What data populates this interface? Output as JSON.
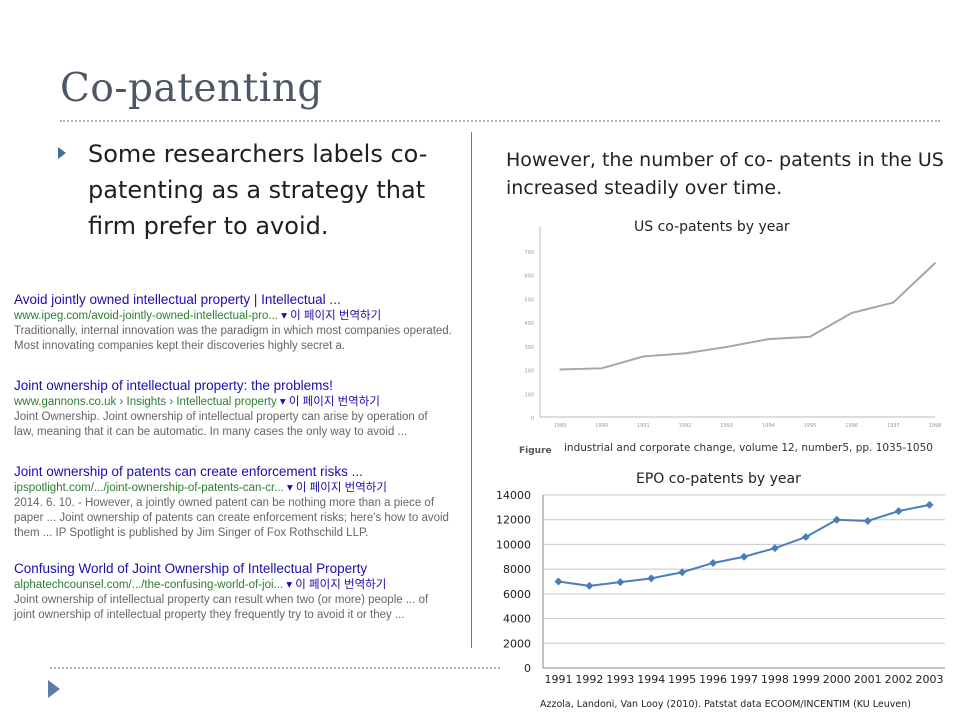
{
  "slide": {
    "title": "Co-patenting",
    "bullet": "Some researchers labels co-patenting as a strategy that firm prefer to avoid.",
    "right_text": "However, the number of co- patents in the US increased steadily over time."
  },
  "search_results": [
    {
      "title": "Avoid jointly owned intellectual property | Intellectual ...",
      "url": "www.ipeg.com/avoid-jointly-owned-intellectual-pro...",
      "translate": "▾ 이 페이지 번역하기",
      "desc": [
        "Traditionally, internal innovation was the paradigm in which most companies operated.",
        "Most innovating companies kept their discoveries highly secret a."
      ]
    },
    {
      "title": "Joint ownership of intellectual property: the problems!",
      "url": "www.gannons.co.uk › Insights › Intellectual property",
      "translate": "▾ 이 페이지 번역하기",
      "desc": [
        "Joint Ownership. Joint ownership of intellectual property can arise by operation of",
        "law, meaning that it can be automatic. In many cases the only way to avoid ..."
      ]
    },
    {
      "title": "Joint ownership of patents can create enforcement risks ...",
      "url": "ipspotlight.com/.../joint-ownership-of-patents-can-cr...",
      "translate": "▾ 이 페이지 번역하기",
      "desc": [
        "2014. 6. 10. - However, a jointly owned patent can be nothing more than a piece of",
        "paper ... Joint ownership of patents can create enforcement risks; here's how to avoid",
        "them ... IP Spotlight is published by Jim Singer of Fox Rothschild LLP."
      ]
    },
    {
      "title": "Confusing World of Joint Ownership of Intellectual Property",
      "url": "alphatechcounsel.com/.../the-confusing-world-of-joi...",
      "translate": "▾ 이 페이지 번역하기",
      "desc": [
        "Joint ownership of intellectual property can result when two (or more) people ... of",
        "joint ownership of intellectual property they frequently try to avoid it or they ..."
      ]
    }
  ],
  "us_chart": {
    "title": "US co-patents by year",
    "caption": "industrial and corporate change, volume 12, number5, pp. 1035-1050",
    "figure_label": "Figure"
  },
  "epo_chart": {
    "title": "EPO co-patents by year"
  },
  "source": "Azzola, Landoni, Van Looy (2010). Patstat data ECOOM/INCENTIM (KU Leuven)",
  "colors": {
    "title": "#4d5665",
    "epo_line": "#4a7ebb",
    "us_line": "#a6a6a6",
    "link": "#1a0dab",
    "url": "#2e7d32"
  },
  "chart_data": [
    {
      "type": "line",
      "title": "US co-patents by year",
      "x": [
        "1989",
        "1990",
        "1991",
        "1992",
        "1993",
        "1994",
        "1995",
        "1996",
        "1997",
        "1998"
      ],
      "values": [
        200,
        205,
        255,
        268,
        295,
        328,
        338,
        438,
        482,
        648
      ],
      "ylim": [
        0,
        800
      ],
      "yticks": [
        0,
        100,
        200,
        300,
        400,
        500,
        600,
        700
      ],
      "grid": false
    },
    {
      "type": "line",
      "title": "EPO co-patents by year",
      "x": [
        "1991",
        "1992",
        "1993",
        "1994",
        "1995",
        "1996",
        "1997",
        "1998",
        "1999",
        "2000",
        "2001",
        "2002",
        "2003"
      ],
      "values": [
        7000,
        6650,
        6950,
        7250,
        7750,
        8500,
        9000,
        9700,
        10600,
        12000,
        11900,
        12700,
        13200
      ],
      "ylim": [
        0,
        14000
      ],
      "yticks": [
        0,
        2000,
        4000,
        6000,
        8000,
        10000,
        12000,
        14000
      ],
      "grid": true,
      "markers": true
    }
  ]
}
